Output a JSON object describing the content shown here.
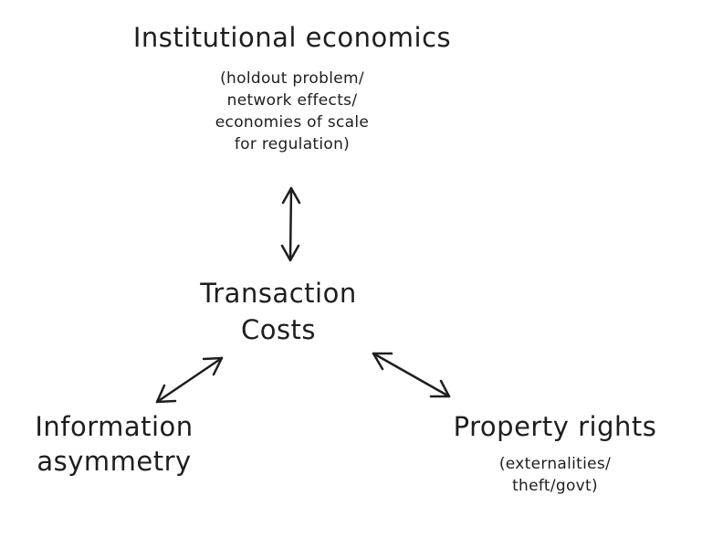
{
  "nodes": {
    "institutional": {
      "title": "Institutional economics",
      "lines": [
        "(holdout problem/",
        "network effects/",
        "economies of scale",
        "for regulation)"
      ]
    },
    "transaction": {
      "line1": "Transaction",
      "line2": "Costs"
    },
    "information": {
      "line1": "Information",
      "line2": "asymmetry"
    },
    "property": {
      "title": "Property rights",
      "lines": [
        "(externalities/",
        "theft/govt)"
      ]
    }
  },
  "edges": [
    {
      "from": "Transaction Costs",
      "to": "Institutional economics",
      "direction": "both"
    },
    {
      "from": "Transaction Costs",
      "to": "Information asymmetry",
      "direction": "both"
    },
    {
      "from": "Transaction Costs",
      "to": "Property rights",
      "direction": "both"
    }
  ]
}
